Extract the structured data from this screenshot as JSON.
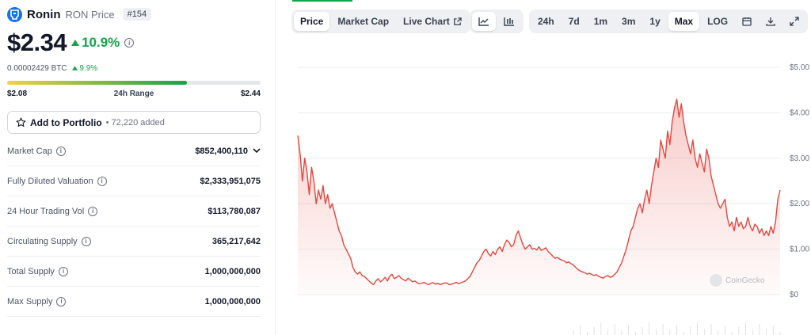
{
  "coin": {
    "name": "Ronin",
    "symbol_label": "RON Price",
    "rank": "#154",
    "price": "$2.34",
    "change": "10.9%",
    "btc_price": "0.00002429 BTC",
    "btc_change": "9.9%"
  },
  "range": {
    "low": "$2.08",
    "label": "24h Range",
    "high": "$2.44",
    "position_pct": 71
  },
  "portfolio": {
    "label": "Add to Portfolio",
    "count": "• 72,220 added"
  },
  "stats": [
    {
      "label": "Market Cap",
      "value": "$852,400,110"
    },
    {
      "label": "Fully Diluted Valuation",
      "value": "$2,333,951,075"
    },
    {
      "label": "24 Hour Trading Vol",
      "value": "$113,780,087"
    },
    {
      "label": "Circulating Supply",
      "value": "365,217,642"
    },
    {
      "label": "Total Supply",
      "value": "1,000,000,000"
    },
    {
      "label": "Max Supply",
      "value": "1,000,000,000"
    }
  ],
  "toolbar": {
    "view_tabs": [
      "Price",
      "Market Cap",
      "Live Chart"
    ],
    "active_view": "Price",
    "chart_type_icons": [
      "line-chart-icon",
      "candlestick-icon"
    ],
    "ranges": [
      "24h",
      "7d",
      "1m",
      "3m",
      "1y",
      "Max",
      "LOG"
    ],
    "active_range": "Max",
    "action_icons": [
      "calendar-icon",
      "download-icon",
      "expand-icon"
    ]
  },
  "watermark": "CoinGecko",
  "colors": {
    "line": "#e5473f",
    "up": "#16a34a",
    "range_start": "#f3d23c"
  },
  "chart_data": {
    "type": "area",
    "yticks": [
      "$0",
      "$1.00",
      "$2.00",
      "$3.00",
      "$4.00",
      "$5.00"
    ],
    "ylim": [
      0,
      5
    ],
    "grid": true,
    "series": [
      {
        "values": [
          3.5,
          3.1,
          2.5,
          3.0,
          2.7,
          2.2,
          2.8,
          2.5,
          2.0,
          2.3,
          2.1,
          2.4,
          2.0,
          2.2,
          1.9,
          2.0,
          1.8,
          1.6,
          1.4,
          1.3,
          1.1,
          1.0,
          0.9,
          0.8,
          0.6,
          0.5,
          0.45,
          0.5,
          0.42,
          0.4,
          0.35,
          0.3,
          0.25,
          0.22,
          0.3,
          0.35,
          0.28,
          0.32,
          0.38,
          0.3,
          0.4,
          0.45,
          0.35,
          0.38,
          0.42,
          0.36,
          0.33,
          0.3,
          0.36,
          0.32,
          0.28,
          0.3,
          0.26,
          0.24,
          0.25,
          0.27,
          0.24,
          0.22,
          0.25,
          0.26,
          0.23,
          0.25,
          0.22,
          0.24,
          0.26,
          0.25,
          0.22,
          0.23,
          0.25,
          0.27,
          0.24,
          0.26,
          0.28,
          0.3,
          0.35,
          0.4,
          0.5,
          0.6,
          0.7,
          0.75,
          0.85,
          0.95,
          1.0,
          0.9,
          0.85,
          0.95,
          0.88,
          1.0,
          1.05,
          0.95,
          1.1,
          1.2,
          1.15,
          1.05,
          1.1,
          1.3,
          1.4,
          1.25,
          1.1,
          1.0,
          1.05,
          1.1,
          1.0,
          1.02,
          0.98,
          1.05,
          0.97,
          1.0,
          1.03,
          0.95,
          0.9,
          0.85,
          0.8,
          0.82,
          0.78,
          0.76,
          0.74,
          0.7,
          0.72,
          0.68,
          0.65,
          0.6,
          0.55,
          0.52,
          0.5,
          0.48,
          0.45,
          0.47,
          0.44,
          0.42,
          0.44,
          0.4,
          0.38,
          0.36,
          0.4,
          0.42,
          0.38,
          0.4,
          0.45,
          0.5,
          0.6,
          0.7,
          0.85,
          1.0,
          1.2,
          1.4,
          1.5,
          1.7,
          1.9,
          2.0,
          1.8,
          2.1,
          2.3,
          2.0,
          2.4,
          2.7,
          3.0,
          2.8,
          3.4,
          3.2,
          3.0,
          3.6,
          3.3,
          3.8,
          4.1,
          4.3,
          3.9,
          4.2,
          3.8,
          3.5,
          3.3,
          3.1,
          3.4,
          3.0,
          2.8,
          3.1,
          2.9,
          2.7,
          3.2,
          3.0,
          2.6,
          2.4,
          2.2,
          2.0,
          1.9,
          2.0,
          2.1,
          1.7,
          1.5,
          1.6,
          1.4,
          1.7,
          1.5,
          1.6,
          1.45,
          1.5,
          1.7,
          1.5,
          1.4,
          1.55,
          1.5,
          1.35,
          1.45,
          1.3,
          1.4,
          1.3,
          1.5,
          1.35,
          1.6,
          2.1,
          2.3
        ]
      }
    ]
  }
}
